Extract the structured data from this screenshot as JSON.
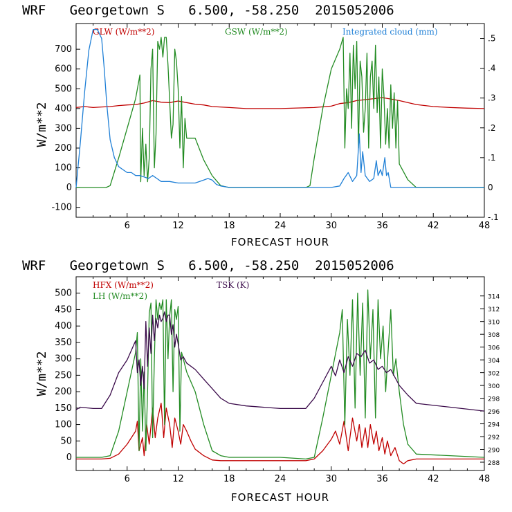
{
  "colors": {
    "red": "#c00000",
    "green": "#228b22",
    "blue": "#1e7fd6",
    "purple": "#3a0a4a"
  },
  "chart_data": [
    {
      "type": "line",
      "title": "WRF   Georgetown S   6.500, -58.250  2015052006",
      "xlabel": "FORECAST HOUR",
      "ylabel": "W/m**2",
      "xlim": [
        0,
        48
      ],
      "ylim": [
        -150,
        830
      ],
      "xticks": [
        6,
        12,
        18,
        24,
        30,
        36,
        42,
        48
      ],
      "yticks": [
        -100,
        0,
        100,
        200,
        300,
        400,
        500,
        600,
        700
      ],
      "y2lim": [
        -0.1,
        0.55
      ],
      "y2ticks": [
        {
          "v": 0.5,
          "label": ".5"
        },
        {
          "v": 0.4,
          "label": ".4"
        },
        {
          "v": 0.3,
          "label": ".3"
        },
        {
          "v": 0.2,
          "label": ".2"
        },
        {
          "v": 0.1,
          "label": ".1"
        },
        {
          "v": 0,
          "label": "0"
        },
        {
          "v": -0.1,
          "label": "-.1"
        }
      ],
      "legend": [
        {
          "label": "GLW (W/m**2)",
          "color": "#c00000"
        },
        {
          "label": "GSW (W/m**2)",
          "color": "#228b22"
        },
        {
          "label": "Integrated cloud (mm)",
          "color": "#1e7fd6"
        }
      ],
      "series": [
        {
          "name": "GLW",
          "axis": "left",
          "color": "#c00000",
          "x": [
            0,
            1,
            2,
            3,
            4,
            5,
            6,
            7,
            8,
            9,
            10,
            11,
            12,
            13,
            14,
            15,
            16,
            18,
            20,
            24,
            28,
            30,
            31,
            32,
            33,
            34,
            35,
            36,
            37,
            38,
            39,
            40,
            42,
            44,
            46,
            48
          ],
          "y": [
            405,
            410,
            405,
            408,
            410,
            415,
            418,
            420,
            428,
            440,
            432,
            430,
            438,
            430,
            422,
            418,
            410,
            405,
            400,
            400,
            405,
            412,
            425,
            430,
            440,
            445,
            450,
            455,
            448,
            440,
            430,
            420,
            410,
            405,
            402,
            400
          ]
        },
        {
          "name": "GSW",
          "axis": "left",
          "color": "#228b22",
          "x": [
            0,
            3.5,
            4,
            5,
            6,
            7,
            7.5,
            7.6,
            7.8,
            8,
            8.2,
            8.4,
            8.6,
            8.8,
            9,
            9.2,
            9.4,
            9.6,
            9.8,
            10,
            10.2,
            10.4,
            10.6,
            10.8,
            11,
            11.2,
            11.4,
            11.6,
            11.8,
            12,
            12.2,
            12.4,
            12.6,
            12.8,
            13,
            14,
            15,
            16,
            17,
            18,
            27,
            27.5,
            28,
            29,
            30,
            31,
            31.4,
            31.6,
            31.8,
            32,
            32.2,
            32.4,
            32.6,
            32.8,
            33,
            33.2,
            33.4,
            33.6,
            33.8,
            34,
            34.2,
            34.4,
            34.6,
            34.8,
            35,
            35.2,
            35.4,
            35.6,
            35.8,
            36,
            36.2,
            36.4,
            36.6,
            36.8,
            37,
            37.2,
            37.4,
            37.6,
            37.8,
            38,
            39,
            40,
            48
          ],
          "y": [
            0,
            0,
            10,
            150,
            300,
            450,
            570,
            30,
            300,
            60,
            220,
            30,
            150,
            600,
            700,
            100,
            270,
            740,
            700,
            760,
            660,
            760,
            760,
            620,
            440,
            250,
            320,
            700,
            640,
            500,
            200,
            460,
            100,
            350,
            250,
            250,
            140,
            60,
            10,
            0,
            0,
            10,
            150,
            400,
            600,
            700,
            760,
            200,
            500,
            400,
            680,
            300,
            720,
            500,
            740,
            200,
            640,
            560,
            280,
            400,
            680,
            200,
            560,
            640,
            400,
            720,
            380,
            560,
            200,
            600,
            460,
            220,
            400,
            200,
            520,
            300,
            480,
            200,
            440,
            120,
            40,
            0,
            0
          ]
        },
        {
          "name": "Integrated cloud",
          "axis": "right",
          "color": "#1e7fd6",
          "x": [
            0,
            0.5,
            1,
            1.5,
            2,
            2.5,
            3,
            3.3,
            3.6,
            4,
            4.5,
            5,
            5.5,
            6,
            6.5,
            7,
            7.5,
            8,
            8.5,
            9,
            9.5,
            10,
            11,
            12,
            13,
            14,
            15,
            15.5,
            16,
            16.5,
            17,
            18,
            30,
            31,
            31.5,
            32,
            32.5,
            33,
            33.3,
            33.5,
            33.7,
            34,
            34.5,
            35,
            35.3,
            35.5,
            35.8,
            36,
            36.3,
            36.5,
            36.7,
            37,
            48
          ],
          "y": [
            0,
            0.15,
            0.32,
            0.46,
            0.53,
            0.53,
            0.5,
            0.4,
            0.28,
            0.16,
            0.1,
            0.07,
            0.06,
            0.05,
            0.05,
            0.04,
            0.04,
            0.035,
            0.03,
            0.04,
            0.03,
            0.02,
            0.02,
            0.015,
            0.015,
            0.015,
            0.025,
            0.03,
            0.025,
            0.01,
            0.005,
            0,
            0,
            0.005,
            0.03,
            0.05,
            0.02,
            0.04,
            0.18,
            0.05,
            0.12,
            0.04,
            0.02,
            0.03,
            0.09,
            0.04,
            0.06,
            0.04,
            0.1,
            0.04,
            0.05,
            0,
            0
          ]
        }
      ]
    },
    {
      "type": "line",
      "title": "WRF   Georgetown S   6.500, -58.250  2015052006",
      "xlabel": "FORECAST HOUR",
      "ylabel": "W/m**2",
      "xlim": [
        0,
        48
      ],
      "ylim": [
        -40,
        550
      ],
      "xticks": [
        6,
        12,
        18,
        24,
        30,
        36,
        42,
        48
      ],
      "yticks": [
        0,
        50,
        100,
        150,
        200,
        250,
        300,
        350,
        400,
        450,
        500
      ],
      "y2lim": [
        286.7,
        317.0
      ],
      "y2ticks": [
        {
          "v": 314,
          "label": "314"
        },
        {
          "v": 312,
          "label": "312"
        },
        {
          "v": 310,
          "label": "310"
        },
        {
          "v": 308,
          "label": "308"
        },
        {
          "v": 306,
          "label": "306"
        },
        {
          "v": 304,
          "label": "304"
        },
        {
          "v": 302,
          "label": "302"
        },
        {
          "v": 300,
          "label": "300"
        },
        {
          "v": 298,
          "label": "298"
        },
        {
          "v": 296,
          "label": "296"
        },
        {
          "v": 294,
          "label": "294"
        },
        {
          "v": 292,
          "label": "292"
        },
        {
          "v": 290,
          "label": "290"
        },
        {
          "v": 288,
          "label": "288"
        }
      ],
      "legend": [
        {
          "label": "HFX (W/m**2)",
          "color": "#c00000"
        },
        {
          "label": "LH  (W/m**2)",
          "color": "#228b22"
        },
        {
          "label": "TSK (K)",
          "color": "#3a0a4a"
        }
      ],
      "series": [
        {
          "name": "HFX",
          "axis": "left",
          "color": "#c00000",
          "x": [
            0,
            2,
            3,
            4,
            5,
            6,
            7,
            7.2,
            7.4,
            7.8,
            8,
            8.3,
            8.6,
            9,
            9.3,
            9.6,
            10,
            10.3,
            10.6,
            11,
            11.3,
            11.6,
            12,
            12.3,
            12.6,
            13,
            13.5,
            14,
            15,
            16,
            17,
            18,
            22,
            26,
            27,
            28,
            29,
            30,
            30.5,
            31,
            31.5,
            32,
            32.5,
            33,
            33.3,
            33.6,
            34,
            34.3,
            34.6,
            35,
            35.3,
            35.6,
            36,
            36.3,
            36.6,
            37,
            37.5,
            38,
            38.5,
            39,
            40,
            44,
            48
          ],
          "y": [
            -5,
            -5,
            -5,
            -3,
            10,
            40,
            80,
            110,
            20,
            60,
            5,
            100,
            40,
            150,
            60,
            120,
            165,
            60,
            150,
            100,
            30,
            120,
            80,
            40,
            100,
            80,
            50,
            25,
            5,
            -8,
            -10,
            -10,
            -10,
            -10,
            -10,
            -5,
            20,
            55,
            80,
            40,
            110,
            20,
            120,
            50,
            100,
            30,
            90,
            30,
            100,
            40,
            80,
            20,
            60,
            10,
            50,
            5,
            30,
            -10,
            -20,
            -10,
            -5,
            -5,
            -5
          ]
        },
        {
          "name": "LH",
          "axis": "left",
          "color": "#228b22",
          "x": [
            0,
            3,
            4,
            5,
            6,
            7,
            7.2,
            7.4,
            7.6,
            7.8,
            8,
            8.2,
            8.4,
            8.6,
            8.8,
            9,
            9.2,
            9.4,
            9.6,
            9.8,
            10,
            10.2,
            10.4,
            10.6,
            10.8,
            11,
            11.2,
            11.4,
            11.6,
            11.8,
            12,
            12.2,
            12.4,
            12.6,
            12.8,
            13,
            14,
            15,
            16,
            17,
            18,
            24,
            27,
            28,
            29,
            30,
            31,
            31.3,
            31.6,
            31.9,
            32.2,
            32.5,
            32.8,
            33.1,
            33.4,
            33.7,
            34,
            34.3,
            34.6,
            34.9,
            35.2,
            35.5,
            35.8,
            36.1,
            36.4,
            36.7,
            37,
            37.3,
            37.6,
            38,
            38.5,
            39,
            40,
            48
          ],
          "y": [
            0,
            0,
            5,
            80,
            200,
            320,
            380,
            20,
            300,
            80,
            260,
            20,
            200,
            440,
            470,
            60,
            300,
            480,
            420,
            470,
            450,
            480,
            100,
            480,
            300,
            430,
            480,
            200,
            450,
            420,
            460,
            80,
            320,
            300,
            280,
            260,
            200,
            100,
            20,
            5,
            0,
            0,
            -5,
            0,
            120,
            250,
            380,
            450,
            100,
            420,
            250,
            480,
            150,
            500,
            250,
            470,
            120,
            510,
            300,
            450,
            120,
            480,
            300,
            400,
            200,
            330,
            450,
            250,
            300,
            200,
            100,
            40,
            10,
            0
          ]
        },
        {
          "name": "TSK",
          "axis": "right",
          "color": "#3a0a4a",
          "x": [
            0,
            0.5,
            2,
            3,
            4,
            5,
            6,
            6.5,
            7,
            7.2,
            7.4,
            7.6,
            7.8,
            8,
            8.2,
            8.4,
            8.6,
            8.8,
            9,
            9.2,
            9.4,
            9.6,
            9.8,
            10,
            10.2,
            10.4,
            10.6,
            10.8,
            11,
            11.2,
            11.4,
            11.6,
            11.8,
            12,
            12.3,
            12.6,
            13,
            14,
            15,
            16,
            17,
            18,
            20,
            24,
            27,
            28,
            29,
            30,
            30.5,
            31,
            31.5,
            32,
            32.5,
            33,
            33.5,
            34,
            34.5,
            35,
            35.5,
            36,
            36.5,
            37,
            38,
            39,
            40,
            44,
            48
          ],
          "y": [
            296.2,
            296.6,
            296.4,
            296.4,
            298.5,
            302,
            304,
            305.5,
            307,
            302,
            304,
            300,
            303,
            299.5,
            310,
            303,
            309,
            305,
            311,
            307,
            310.5,
            309,
            311,
            310,
            310.5,
            311.5,
            310,
            311,
            311,
            308,
            309.5,
            306,
            308,
            306.5,
            304,
            304.5,
            303.5,
            302.5,
            301,
            299.5,
            298,
            297.2,
            296.8,
            296.4,
            296.4,
            298,
            300.5,
            303,
            301.5,
            304,
            302,
            304.5,
            303,
            305,
            304.5,
            305.5,
            303.5,
            304,
            302.5,
            303,
            302,
            302.5,
            300,
            298.5,
            297.2,
            296.6,
            296
          ]
        }
      ]
    }
  ]
}
